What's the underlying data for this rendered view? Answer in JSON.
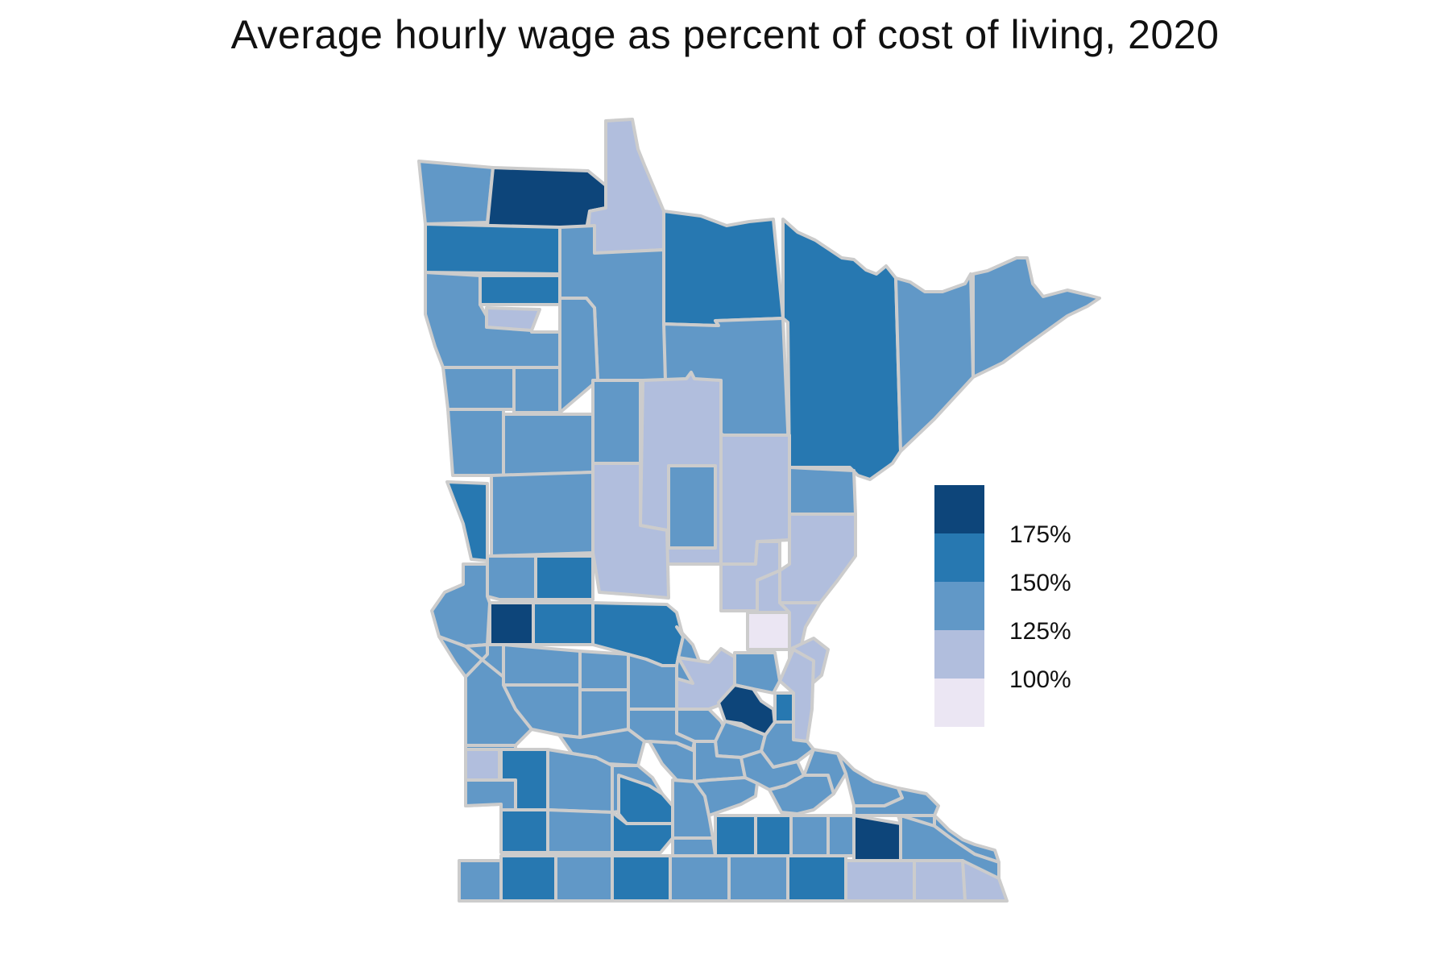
{
  "title": "Average hourly wage as percent of cost of living, 2020",
  "colors": {
    "gt175": "#0d457a",
    "b150_175": "#2778b1",
    "b125_150": "#6198c7",
    "b100_125": "#b1bedd",
    "lt100": "#ebe6f3",
    "border": "#cccccc"
  },
  "legend": {
    "bins": [
      "gt175",
      "b150_175",
      "b125_150",
      "b100_125",
      "lt100"
    ],
    "labels": [
      "175%",
      "150%",
      "125%",
      "100%"
    ]
  }
}
